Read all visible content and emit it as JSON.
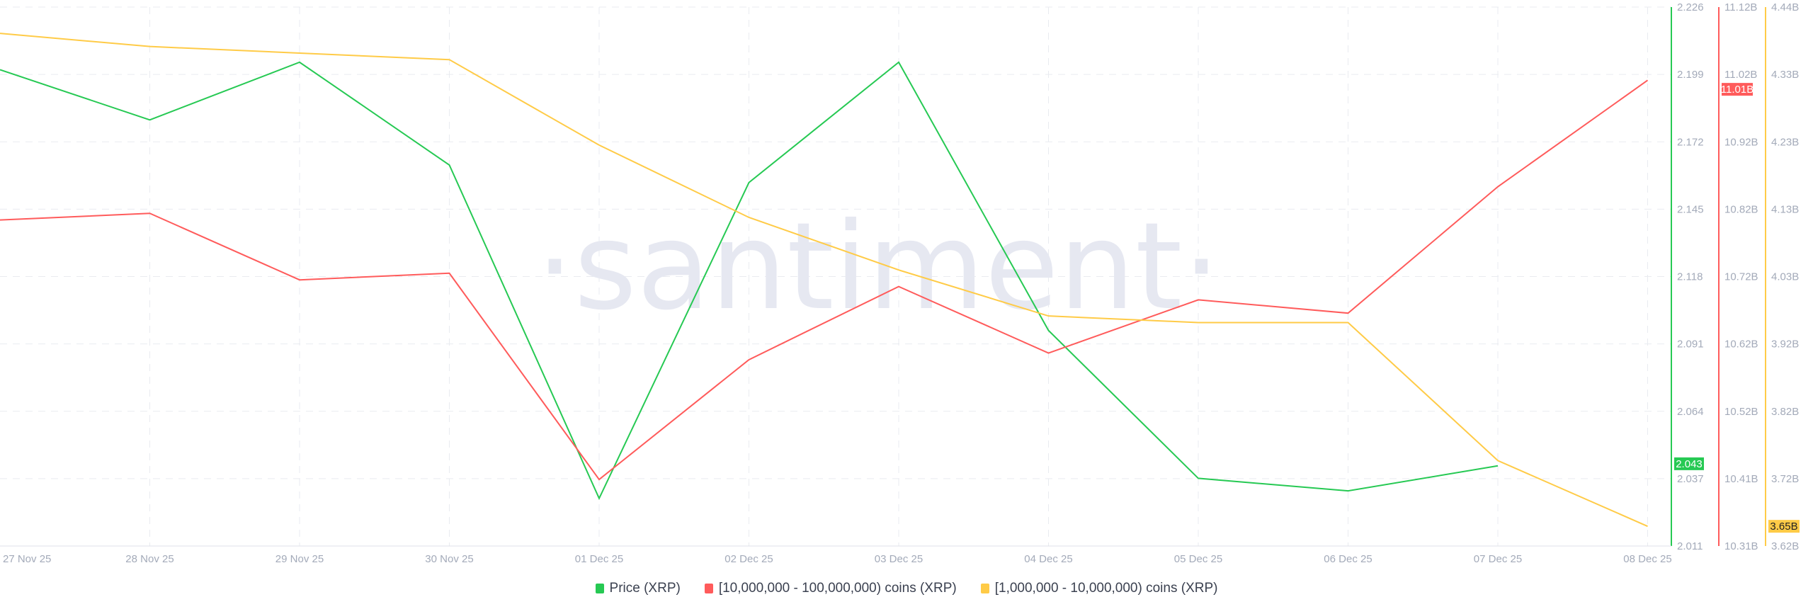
{
  "watermark": "·santiment·",
  "chart_data": {
    "type": "line",
    "x": [
      "27 Nov 25",
      "28 Nov 25",
      "29 Nov 25",
      "30 Nov 25",
      "01 Dec 25",
      "02 Dec 25",
      "03 Dec 25",
      "04 Dec 25",
      "05 Dec 25",
      "06 Dec 25",
      "07 Dec 25",
      "08 Dec 25"
    ],
    "grid": true,
    "legend_placement": "bottom",
    "series": [
      {
        "name": "Price (XRP)",
        "color": "#26c953",
        "axis": "price",
        "values": [
          2.201,
          2.181,
          2.204,
          2.163,
          2.03,
          2.156,
          2.204,
          2.097,
          2.038,
          2.033,
          2.043,
          null
        ],
        "last_label": "2.043"
      },
      {
        "name": "[10,000,000 - 100,000,000) coins (XRP)",
        "color": "#ff5b5b",
        "axis": "red",
        "values": [
          10.8,
          10.81,
          10.71,
          10.72,
          10.41,
          10.59,
          10.7,
          10.6,
          10.68,
          10.66,
          10.85,
          11.01
        ],
        "last_label": "11.01B"
      },
      {
        "name": "[1,000,000 - 10,000,000) coins (XRP)",
        "color": "#ffcb47",
        "axis": "yellow",
        "values": [
          4.4,
          4.38,
          4.37,
          4.36,
          4.23,
          4.12,
          4.04,
          3.97,
          3.96,
          3.96,
          3.75,
          3.65
        ],
        "last_label": "3.65B"
      }
    ],
    "axes": {
      "price": {
        "range": [
          2.011,
          2.226
        ],
        "ticks": [
          "2.226",
          "2.199",
          "2.172",
          "2.145",
          "2.118",
          "2.091",
          "2.064",
          "2.037",
          "2.011"
        ]
      },
      "red": {
        "range": [
          10.31,
          11.12
        ],
        "ticks": [
          "11.12B",
          "11.02B",
          "10.92B",
          "10.82B",
          "10.72B",
          "10.62B",
          "10.52B",
          "10.41B",
          "10.31B"
        ]
      },
      "yellow": {
        "range": [
          3.62,
          4.44
        ],
        "ticks": [
          "4.44B",
          "4.33B",
          "4.23B",
          "4.13B",
          "4.03B",
          "3.92B",
          "3.82B",
          "3.72B",
          "3.62B"
        ]
      }
    }
  }
}
